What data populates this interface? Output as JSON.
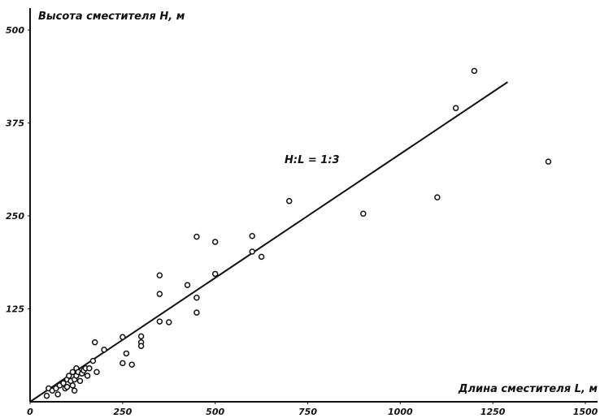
{
  "chart_data": {
    "type": "scatter",
    "title": "",
    "xlabel": "Длина сместителя L, м",
    "ylabel": "Высота сместителя H, м",
    "xlim": [
      0,
      1500
    ],
    "ylim": [
      0,
      500
    ],
    "x_ticks": [
      "0",
      "250",
      "500",
      "750",
      "1000",
      "1250",
      "1500"
    ],
    "y_ticks": [
      "125",
      "250",
      "375",
      "500"
    ],
    "grid": false,
    "legend": "none",
    "annotation": "H:L = 1:3",
    "trend_line": {
      "x": [
        0,
        1290
      ],
      "y": [
        0,
        430
      ]
    },
    "points": [
      {
        "x": 45,
        "y": 8
      },
      {
        "x": 50,
        "y": 18
      },
      {
        "x": 60,
        "y": 15
      },
      {
        "x": 70,
        "y": 18
      },
      {
        "x": 75,
        "y": 10
      },
      {
        "x": 80,
        "y": 22
      },
      {
        "x": 90,
        "y": 25
      },
      {
        "x": 95,
        "y": 18
      },
      {
        "x": 100,
        "y": 30
      },
      {
        "x": 100,
        "y": 20
      },
      {
        "x": 105,
        "y": 35
      },
      {
        "x": 110,
        "y": 28
      },
      {
        "x": 115,
        "y": 40
      },
      {
        "x": 115,
        "y": 22
      },
      {
        "x": 120,
        "y": 30
      },
      {
        "x": 120,
        "y": 15
      },
      {
        "x": 125,
        "y": 45
      },
      {
        "x": 125,
        "y": 35
      },
      {
        "x": 130,
        "y": 40
      },
      {
        "x": 135,
        "y": 28
      },
      {
        "x": 140,
        "y": 38
      },
      {
        "x": 145,
        "y": 42
      },
      {
        "x": 150,
        "y": 45
      },
      {
        "x": 155,
        "y": 35
      },
      {
        "x": 160,
        "y": 45
      },
      {
        "x": 170,
        "y": 55
      },
      {
        "x": 175,
        "y": 80
      },
      {
        "x": 180,
        "y": 40
      },
      {
        "x": 200,
        "y": 70
      },
      {
        "x": 250,
        "y": 87
      },
      {
        "x": 250,
        "y": 52
      },
      {
        "x": 260,
        "y": 65
      },
      {
        "x": 275,
        "y": 50
      },
      {
        "x": 300,
        "y": 88
      },
      {
        "x": 300,
        "y": 80
      },
      {
        "x": 300,
        "y": 75
      },
      {
        "x": 350,
        "y": 170
      },
      {
        "x": 350,
        "y": 145
      },
      {
        "x": 350,
        "y": 108
      },
      {
        "x": 375,
        "y": 107
      },
      {
        "x": 425,
        "y": 157
      },
      {
        "x": 450,
        "y": 222
      },
      {
        "x": 450,
        "y": 140
      },
      {
        "x": 450,
        "y": 120
      },
      {
        "x": 500,
        "y": 215
      },
      {
        "x": 500,
        "y": 172
      },
      {
        "x": 600,
        "y": 223
      },
      {
        "x": 600,
        "y": 202
      },
      {
        "x": 625,
        "y": 195
      },
      {
        "x": 700,
        "y": 270
      },
      {
        "x": 900,
        "y": 253
      },
      {
        "x": 1100,
        "y": 275
      },
      {
        "x": 1150,
        "y": 395
      },
      {
        "x": 1200,
        "y": 445
      },
      {
        "x": 1400,
        "y": 323
      }
    ]
  }
}
